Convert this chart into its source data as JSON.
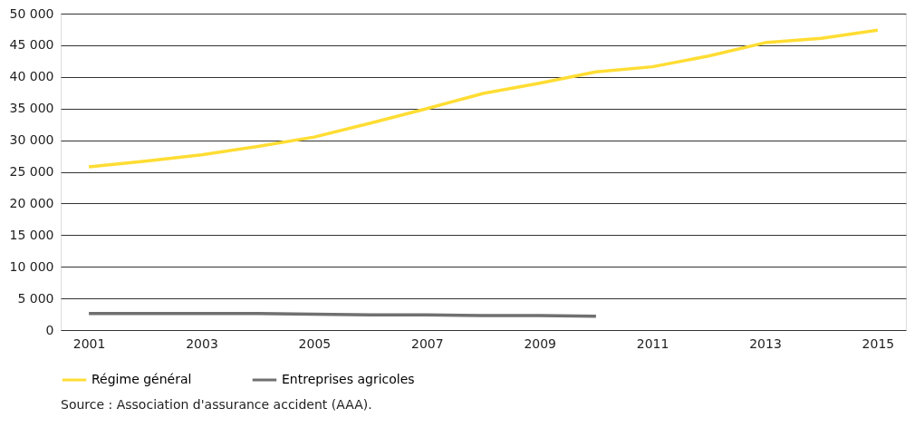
{
  "chart_data": {
    "type": "line",
    "x": [
      2001,
      2002,
      2003,
      2004,
      2005,
      2006,
      2007,
      2008,
      2009,
      2010,
      2011,
      2012,
      2013,
      2014,
      2015
    ],
    "series": [
      {
        "name": "Régime général",
        "color": "#ffdd33",
        "values": [
          25800,
          26700,
          27700,
          29000,
          30500,
          32700,
          35000,
          37400,
          39000,
          40800,
          41600,
          43300,
          45400,
          46100,
          47400
        ]
      },
      {
        "name": "Entreprises agricoles",
        "color": "#707070",
        "values": [
          2600,
          2600,
          2600,
          2600,
          2500,
          2400,
          2400,
          2300,
          2300,
          2200,
          null,
          null,
          null,
          null,
          null
        ]
      }
    ],
    "xlim": [
      2000.5,
      2015.5
    ],
    "xticks": [
      2001,
      2003,
      2005,
      2007,
      2009,
      2011,
      2013,
      2015
    ],
    "ylim": [
      0,
      50000
    ],
    "yticks": [
      {
        "value": 0,
        "label": "0"
      },
      {
        "value": 5000,
        "label": "5 000"
      },
      {
        "value": 10000,
        "label": "10 000"
      },
      {
        "value": 15000,
        "label": "15 000"
      },
      {
        "value": 20000,
        "label": "20 000"
      },
      {
        "value": 25000,
        "label": "25 000"
      },
      {
        "value": 30000,
        "label": "30 000"
      },
      {
        "value": 35000,
        "label": "35 000"
      },
      {
        "value": 40000,
        "label": "40 000"
      },
      {
        "value": 45000,
        "label": "45 000"
      },
      {
        "value": 50000,
        "label": "50 000"
      }
    ],
    "grid": "y",
    "legend": "bottom",
    "marker": "none",
    "line_style": "solid",
    "annotations": [
      "Source : Association d'assurance accident (AAA)."
    ]
  }
}
